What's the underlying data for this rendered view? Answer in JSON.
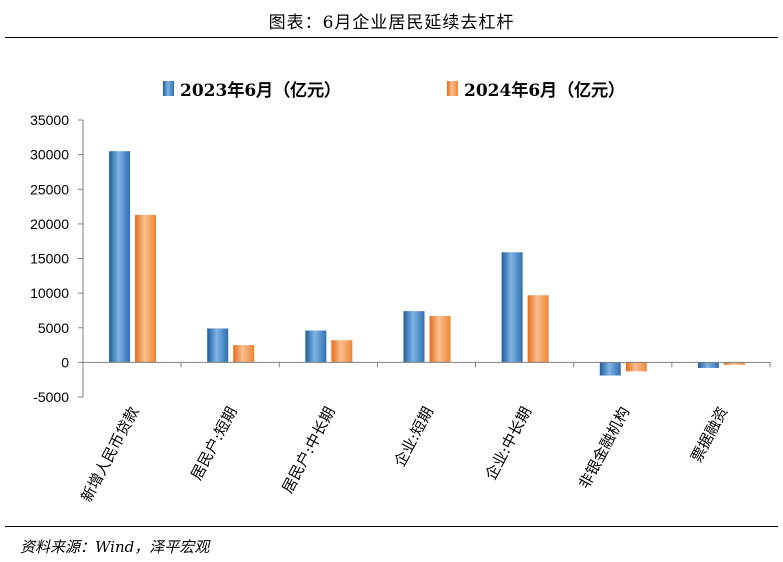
{
  "title": "图表：6月企业居民延续去杠杆",
  "source": "资料来源：Wind，泽平宏观",
  "chart_data": {
    "type": "bar",
    "categories": [
      "新增人民币贷款",
      "居民户:短期",
      "居民户:中长期",
      "企业:短期",
      "企业:中长期",
      "非银金融机构",
      "票据融资"
    ],
    "series": [
      {
        "name": "2023年6月（亿元）",
        "color": "#3C7DBE",
        "values": [
          30500,
          4900,
          4600,
          7400,
          15900,
          -1900,
          -800
        ]
      },
      {
        "name": "2024年6月（亿元）",
        "color": "#F28A3A",
        "values": [
          21300,
          2500,
          3200,
          6700,
          9700,
          -1300,
          -350
        ]
      }
    ],
    "ylim": [
      -5000,
      35000
    ],
    "yticks": [
      -5000,
      0,
      5000,
      10000,
      15000,
      20000,
      25000,
      30000,
      35000
    ],
    "legend_position": "top",
    "grid": false
  }
}
